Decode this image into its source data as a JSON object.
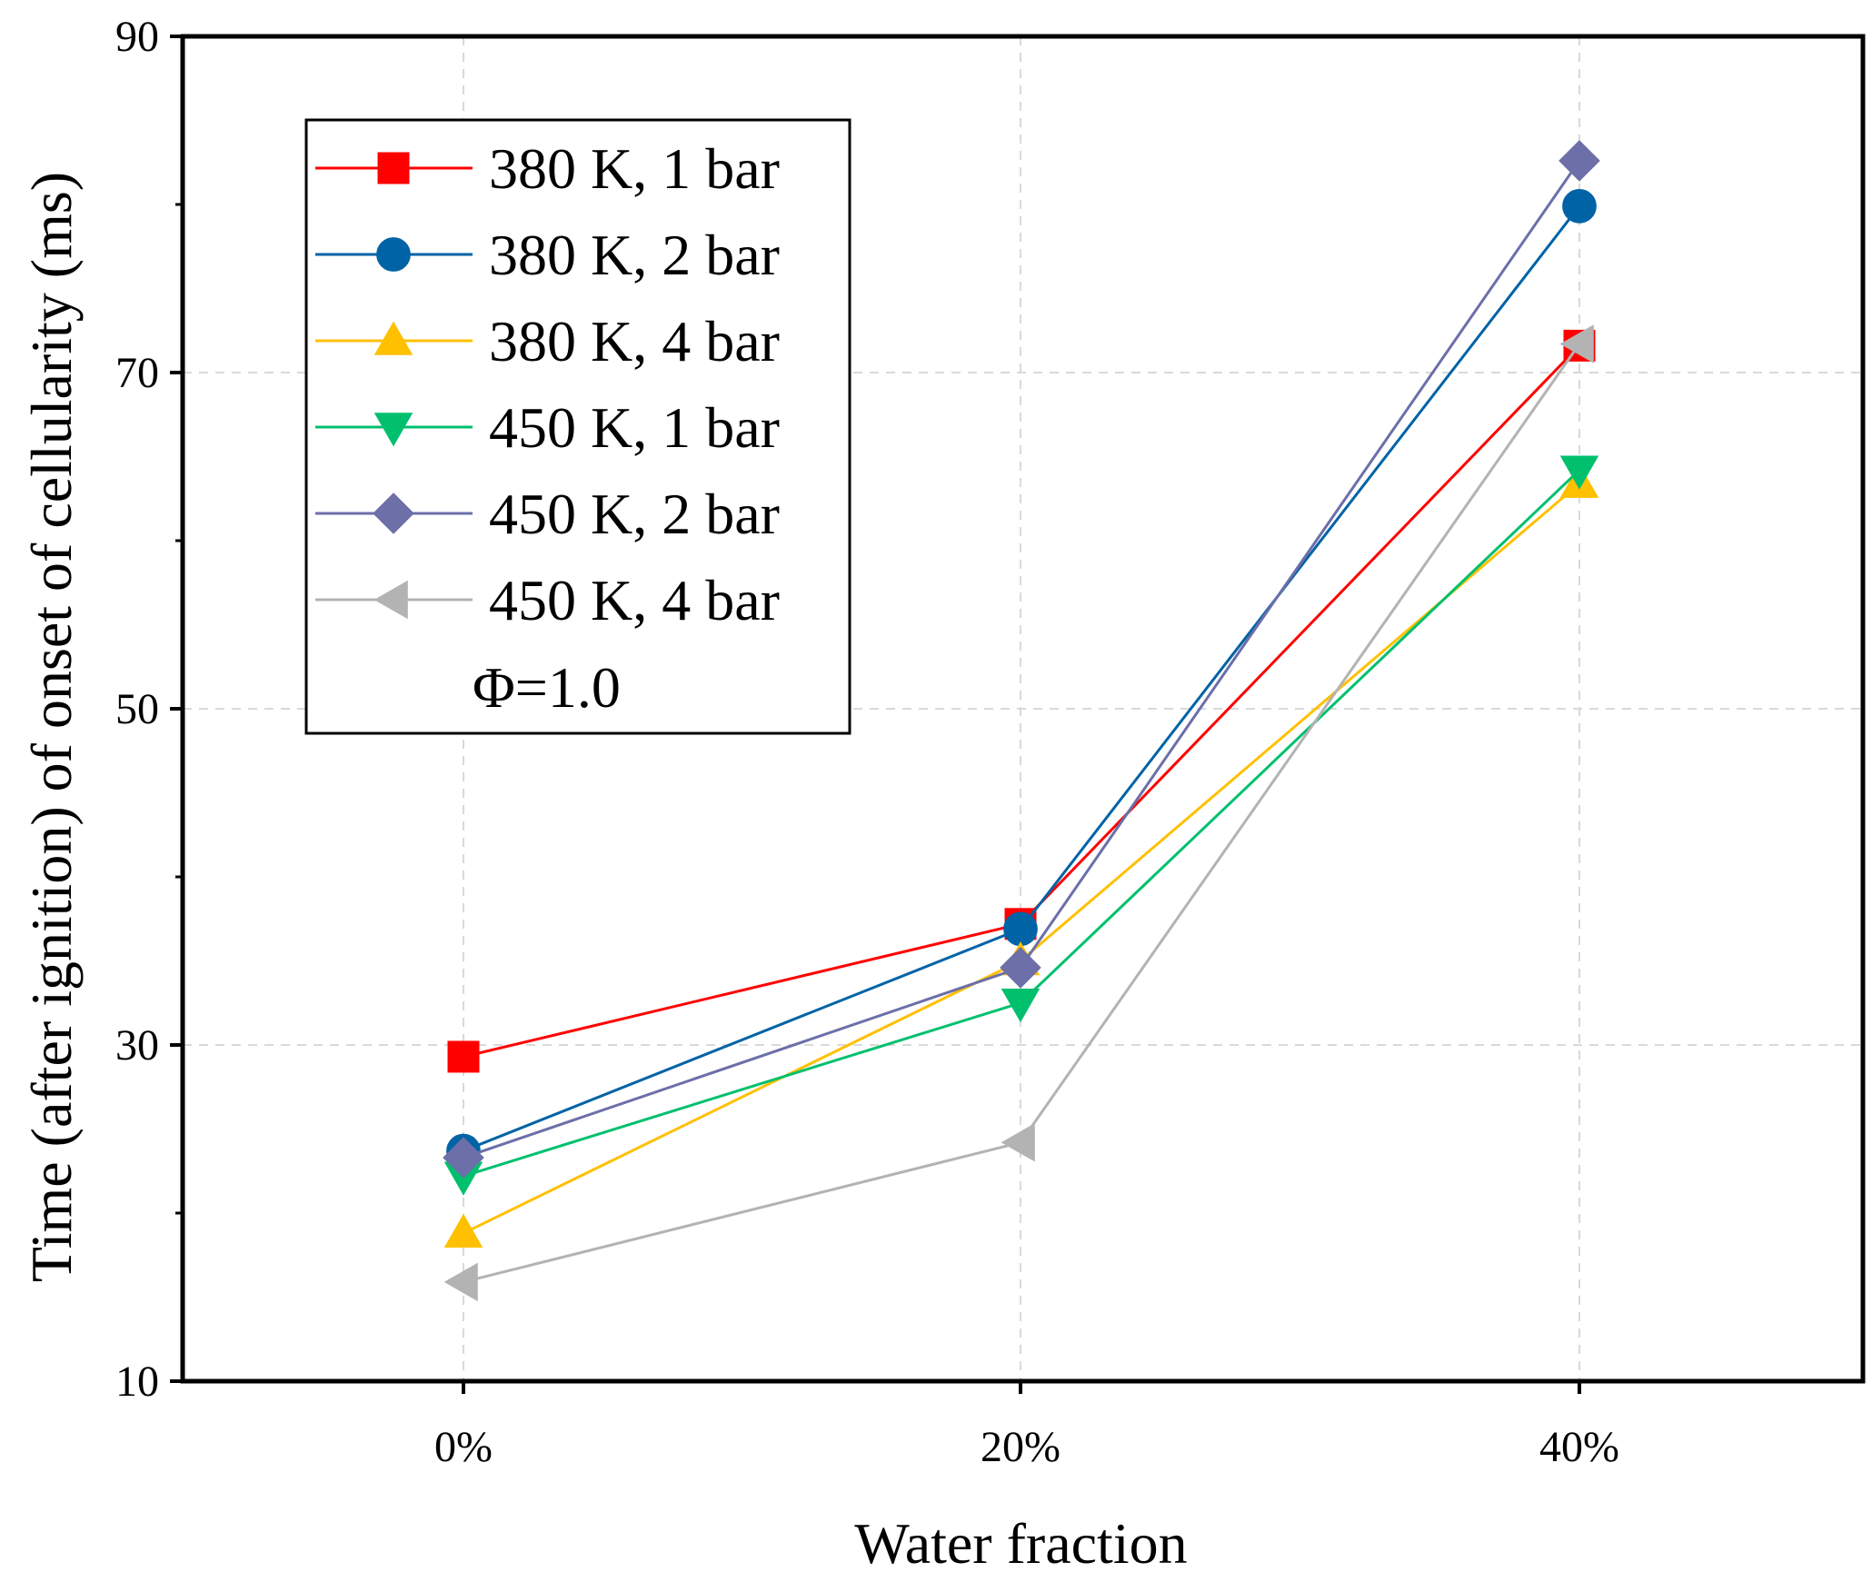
{
  "chart_data": {
    "type": "line",
    "title": "",
    "xlabel": "Water fraction",
    "ylabel": "Time (after ignition) of onset of cellularity (ms)",
    "categories": [
      "0%",
      "20%",
      "40%"
    ],
    "yticks": [
      "10",
      "30",
      "50",
      "70",
      "90"
    ],
    "ylim": [
      10,
      90
    ],
    "grid": true,
    "legend_position": "top-left",
    "annotation": "Φ=1.0",
    "series": [
      {
        "name": "380 K, 1 bar",
        "color": "#ff0000",
        "marker": "square",
        "values": [
          29.3,
          37.2,
          71.6
        ]
      },
      {
        "name": "380 K, 2 bar",
        "color": "#0063a6",
        "marker": "circle",
        "values": [
          23.7,
          36.9,
          79.9
        ]
      },
      {
        "name": "380 K, 4 bar",
        "color": "#ffc000",
        "marker": "triangle-up",
        "values": [
          18.8,
          35.0,
          63.4
        ]
      },
      {
        "name": "450 K, 1 bar",
        "color": "#00c06e",
        "marker": "triangle-down",
        "values": [
          22.2,
          32.5,
          64.2
        ]
      },
      {
        "name": "450 K, 2 bar",
        "color": "#6c6fa8",
        "marker": "diamond",
        "values": [
          23.3,
          34.6,
          82.6
        ]
      },
      {
        "name": "450 K, 4 bar",
        "color": "#b3b3b3",
        "marker": "triangle-left",
        "values": [
          15.9,
          24.2,
          71.7
        ]
      }
    ]
  }
}
